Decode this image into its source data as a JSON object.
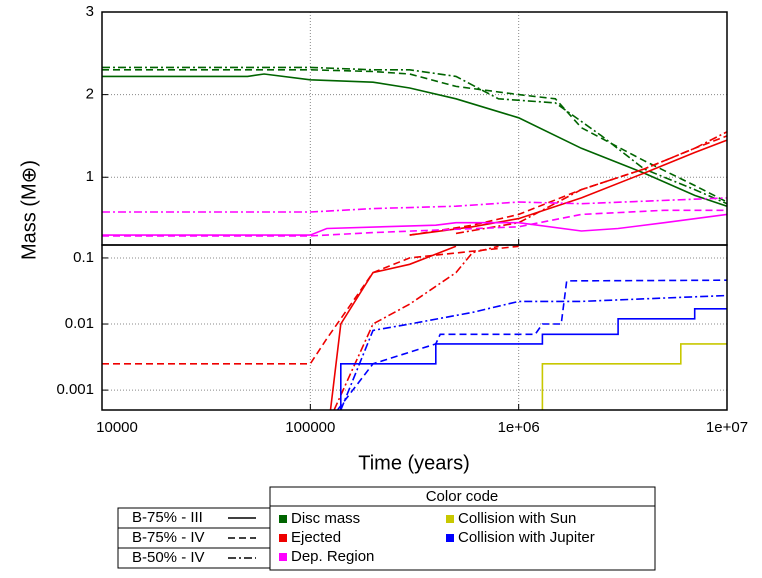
{
  "chart_data": [
    {
      "type": "line",
      "xscale": "log",
      "yscale": "linear",
      "grid": true,
      "ylabel": "Mass (M⊕)",
      "xlim": [
        10000,
        10000000
      ],
      "xticks": [
        10000,
        100000,
        1000000,
        10000000
      ],
      "ylim": [
        0.18,
        3
      ],
      "yticks": [
        1,
        2,
        3
      ],
      "series": [
        {
          "name": "Disc mass",
          "color": "#006400",
          "dash": "solid",
          "x": [
            10000,
            50000,
            60000,
            100000,
            200000,
            300000,
            500000,
            1000000,
            2000000,
            4000000,
            7000000,
            10000000
          ],
          "values": [
            2.22,
            2.22,
            2.25,
            2.18,
            2.15,
            2.08,
            1.95,
            1.72,
            1.35,
            1.05,
            0.78,
            0.65
          ]
        },
        {
          "name": "Disc mass",
          "color": "#006400",
          "dash": "dashed",
          "x": [
            10000,
            100000,
            200000,
            300000,
            500000,
            1000000,
            1500000,
            2000000,
            4000000,
            7000000,
            10000000
          ],
          "values": [
            2.3,
            2.3,
            2.28,
            2.25,
            2.1,
            2.0,
            1.95,
            1.6,
            1.2,
            0.9,
            0.7
          ]
        },
        {
          "name": "Disc mass",
          "color": "#006400",
          "dash": "dashdot",
          "x": [
            10000,
            100000,
            200000,
            300000,
            500000,
            800000,
            1500000,
            2500000,
            4000000,
            7000000,
            10000000
          ],
          "values": [
            2.33,
            2.33,
            2.3,
            2.3,
            2.22,
            1.95,
            1.9,
            1.5,
            1.1,
            0.85,
            0.68
          ]
        },
        {
          "name": "Ejected",
          "color": "#ee0000",
          "dash": "solid",
          "x": [
            300000,
            600000,
            1000000,
            2000000,
            4000000,
            7000000,
            10000000
          ],
          "values": [
            0.3,
            0.4,
            0.5,
            0.75,
            1.05,
            1.3,
            1.45
          ]
        },
        {
          "name": "Ejected",
          "color": "#ee0000",
          "dash": "dashed",
          "x": [
            300000,
            600000,
            1000000,
            2000000,
            4000000,
            7000000,
            10000000
          ],
          "values": [
            0.3,
            0.42,
            0.55,
            0.85,
            1.1,
            1.35,
            1.5
          ]
        },
        {
          "name": "Ejected",
          "color": "#ee0000",
          "dash": "dashdot",
          "x": [
            500000,
            1000000,
            2000000,
            4000000,
            7000000,
            10000000
          ],
          "values": [
            0.32,
            0.45,
            0.85,
            1.1,
            1.35,
            1.55
          ]
        },
        {
          "name": "Dep. Region",
          "color": "#ff00ff",
          "dash": "solid",
          "x": [
            10000,
            100000,
            120000,
            400000,
            500000,
            1000000,
            2000000,
            3000000,
            5000000,
            10000000
          ],
          "values": [
            0.3,
            0.3,
            0.38,
            0.42,
            0.45,
            0.45,
            0.35,
            0.38,
            0.45,
            0.55
          ]
        },
        {
          "name": "Dep. Region",
          "color": "#ff00ff",
          "dash": "dashed",
          "x": [
            10000,
            100000,
            200000,
            1000000,
            2000000,
            5000000,
            10000000
          ],
          "values": [
            0.29,
            0.29,
            0.33,
            0.4,
            0.55,
            0.6,
            0.6
          ]
        },
        {
          "name": "Dep. Region",
          "color": "#ff00ff",
          "dash": "dashdot",
          "x": [
            10000,
            100000,
            200000,
            500000,
            1000000,
            2000000,
            10000000
          ],
          "values": [
            0.58,
            0.58,
            0.62,
            0.65,
            0.7,
            0.68,
            0.75
          ]
        }
      ]
    },
    {
      "type": "line",
      "xscale": "log",
      "yscale": "log",
      "grid": true,
      "xlabel": "Time (years)",
      "xlim": [
        10000,
        10000000
      ],
      "xticks": [
        10000,
        100000,
        {
          "value": 1000000,
          "label": "1e+06"
        },
        {
          "value": 10000000,
          "label": "1e+07"
        }
      ],
      "ylim": [
        0.0005,
        0.157
      ],
      "yticks": [
        0.001,
        0.01,
        0.1
      ],
      "series": [
        {
          "name": "Ejected",
          "color": "#ee0000",
          "dash": "dashed",
          "x": [
            10000,
            100000,
            120000,
            200000,
            300000,
            1000000
          ],
          "values": [
            0.0025,
            0.0025,
            0.006,
            0.06,
            0.1,
            0.15
          ]
        },
        {
          "name": "Ejected",
          "color": "#ee0000",
          "dash": "solid",
          "x": [
            125000,
            140000,
            200000,
            300000,
            500000
          ],
          "values": [
            0.0005,
            0.01,
            0.06,
            0.08,
            0.15
          ]
        },
        {
          "name": "Ejected",
          "color": "#ee0000",
          "dash": "dashdot",
          "x": [
            130000,
            200000,
            300000,
            500000,
            600000,
            800000
          ],
          "values": [
            0.0005,
            0.01,
            0.02,
            0.06,
            0.12,
            0.15
          ]
        },
        {
          "name": "Collision with Jupiter",
          "color": "#0000ff",
          "dash": "solid",
          "x": [
            140000,
            140000,
            400000,
            400000,
            1300000,
            1300000,
            3000000,
            3000000,
            7000000,
            7000000,
            10000000
          ],
          "values": [
            0.0005,
            0.0025,
            0.0025,
            0.005,
            0.005,
            0.007,
            0.007,
            0.012,
            0.012,
            0.017,
            0.017
          ]
        },
        {
          "name": "Collision with Jupiter",
          "color": "#0000ff",
          "dash": "dashed",
          "x": [
            135000,
            200000,
            400000,
            420000,
            1200000,
            1300000,
            1600000,
            1700000,
            10000000
          ],
          "values": [
            0.0005,
            0.0025,
            0.005,
            0.007,
            0.007,
            0.01,
            0.01,
            0.045,
            0.046
          ]
        },
        {
          "name": "Collision with Jupiter",
          "color": "#0000ff",
          "dash": "dashdot",
          "x": [
            140000,
            200000,
            300000,
            600000,
            1000000,
            2000000,
            10000000
          ],
          "values": [
            0.0005,
            0.008,
            0.01,
            0.015,
            0.022,
            0.022,
            0.027
          ]
        },
        {
          "name": "Collision with Sun",
          "color": "#c8c800",
          "dash": "solid",
          "x": [
            1300000,
            1300000,
            6000000,
            6000000,
            10000000
          ],
          "values": [
            0.0005,
            0.0025,
            0.0025,
            0.005,
            0.005
          ]
        }
      ]
    }
  ],
  "legend": {
    "line_styles": [
      {
        "label": "B-75% - III",
        "dash": "solid"
      },
      {
        "label": "B-75% - IV",
        "dash": "dashed"
      },
      {
        "label": "B-50% - IV",
        "dash": "dashdot"
      }
    ],
    "color_code": {
      "title": "Color code",
      "items": [
        {
          "label": "Disc mass",
          "color": "#006400"
        },
        {
          "label": "Ejected",
          "color": "#ee0000"
        },
        {
          "label": "Dep. Region",
          "color": "#ff00ff"
        },
        {
          "label": "Collision with Sun",
          "color": "#c8c800"
        },
        {
          "label": "Collision with Jupiter",
          "color": "#0000ff"
        }
      ]
    }
  }
}
